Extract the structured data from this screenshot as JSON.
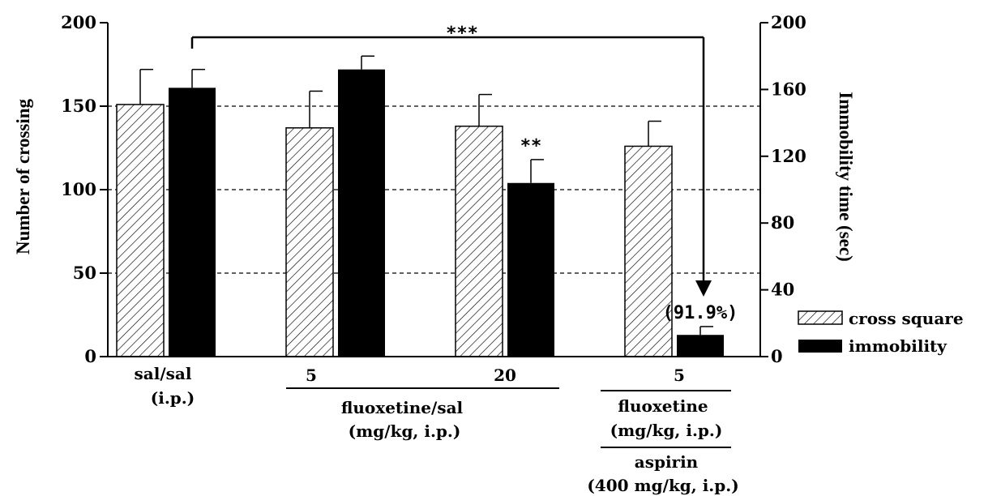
{
  "chart_data": {
    "type": "bar",
    "y_left": {
      "label": "Number of crossing",
      "range": [
        0,
        200
      ],
      "ticks": [
        "0",
        "50",
        "100",
        "150",
        "200"
      ]
    },
    "y_right": {
      "label": "Immobility time (sec)",
      "range": [
        0,
        200
      ],
      "ticks": [
        "0",
        "40",
        "80",
        "120",
        "160",
        "200"
      ]
    },
    "grid": {
      "horizontal_dashed_at": [
        50,
        100,
        150
      ]
    },
    "groups": [
      {
        "tick_label": "sal/sal",
        "sub_label": "(i.p.)",
        "cross_square": 151,
        "cross_square_err": 21,
        "immobility": 161,
        "immobility_err": 11
      },
      {
        "tick_label": "5",
        "cross_square": 137,
        "cross_square_err": 22,
        "immobility": 172,
        "immobility_err": 8
      },
      {
        "tick_label": "20",
        "cross_square": 138,
        "cross_square_err": 19,
        "immobility": 104,
        "immobility_err": 14,
        "immobility_marker": "**"
      },
      {
        "tick_label": "5",
        "cross_square": 126,
        "cross_square_err": 15,
        "immobility": 13,
        "immobility_err": 5,
        "immobility_marker": "(91.9%)"
      }
    ],
    "group_labels": {
      "fluoxetine_sal": [
        "fluoxetine/sal",
        "(mg/kg, i.p.)"
      ],
      "fluoxetine": [
        "fluoxetine",
        "(mg/kg, i.p.)"
      ],
      "aspirin": [
        "aspirin",
        "(400 mg/kg, i.p.)"
      ]
    },
    "comparison": {
      "label": "***"
    },
    "legend": {
      "position": "right",
      "items": [
        {
          "name": "cross square",
          "fill": "hatched"
        },
        {
          "name": "immobility",
          "fill": "solid"
        }
      ]
    }
  }
}
